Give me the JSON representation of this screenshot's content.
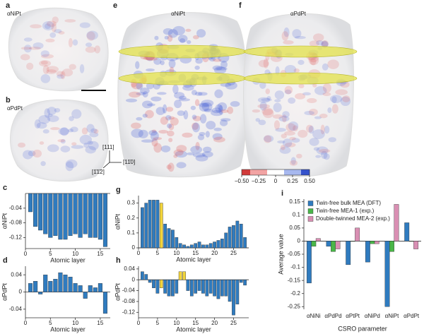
{
  "image_panels": [
    {
      "letter": "a",
      "label": "αNiPt"
    },
    {
      "letter": "b",
      "label": "αPdPt"
    },
    {
      "letter": "e",
      "label": "αNiPt"
    },
    {
      "letter": "f",
      "label": "αPdPt"
    }
  ],
  "direction_labels": [
    "[111]",
    "[11̄0]",
    "[1̄1̄2]"
  ],
  "colorbar": {
    "ticks": [
      {
        "value": -0.5,
        "label": "−0.50"
      },
      {
        "value": -0.25,
        "label": "−0.25"
      },
      0,
      {
        "value": 0.25,
        "label": "0.25"
      },
      {
        "value": 0.5,
        "label": "0.50"
      }
    ]
  },
  "chart_data": [
    {
      "type": "bar",
      "letter": "c",
      "x_label": "Atomic layer",
      "y_label": "αNiPt",
      "x": [
        1,
        2,
        3,
        4,
        5,
        6,
        7,
        8,
        9,
        10,
        11,
        12,
        13,
        14,
        15,
        16
      ],
      "values": [
        -0.05,
        -0.09,
        -0.1,
        -0.11,
        -0.12,
        -0.115,
        -0.125,
        -0.125,
        -0.115,
        -0.11,
        -0.12,
        -0.11,
        -0.12,
        -0.12,
        -0.125,
        -0.145
      ],
      "color": "#2f7bbf",
      "xlim": [
        0,
        17
      ],
      "ylim": [
        -0.15,
        0
      ],
      "xticks": [
        0,
        5,
        10,
        15
      ],
      "yticks": [
        -0.04,
        -0.08,
        -0.12
      ]
    },
    {
      "type": "bar",
      "letter": "d",
      "x_label": "Atomic layer",
      "y_label": "αPdPt",
      "x": [
        1,
        2,
        3,
        4,
        5,
        6,
        7,
        8,
        9,
        10,
        11,
        12,
        13,
        14,
        15,
        16
      ],
      "values": [
        0.02,
        0.025,
        -0.005,
        0.04,
        0.025,
        0.03,
        0.045,
        0.04,
        0.035,
        0.02,
        0.015,
        -0.015,
        0.015,
        0.01,
        0.02,
        -0.05
      ],
      "color": "#2f7bbf",
      "xlim": [
        0,
        17
      ],
      "ylim": [
        -0.06,
        0.06
      ],
      "xticks": [
        0,
        5,
        10,
        15
      ],
      "yticks": [
        -0.04,
        0,
        0.04
      ]
    },
    {
      "type": "bar",
      "letter": "g",
      "x_label": "Atomic layer",
      "y_label": "αNiPt",
      "x": [
        1,
        2,
        3,
        4,
        5,
        6,
        7,
        8,
        9,
        10,
        11,
        12,
        13,
        14,
        15,
        16,
        17,
        18,
        19,
        20,
        21,
        22,
        23,
        24,
        25,
        26,
        27,
        28
      ],
      "values": [
        0.27,
        0.3,
        0.32,
        0.32,
        0.32,
        0.3,
        0.16,
        0.13,
        0.12,
        0.07,
        0.03,
        0.02,
        0.01,
        0.02,
        0.03,
        0.04,
        0.02,
        0.02,
        0.03,
        0.04,
        0.05,
        0.06,
        0.1,
        0.14,
        0.15,
        0.18,
        0.16,
        0.07
      ],
      "color": "#2f7bbf",
      "highlight_color": "#f2d43a",
      "highlight": [
        6
      ],
      "xlim": [
        0,
        29
      ],
      "ylim": [
        0,
        0.35
      ],
      "xticks": [
        0,
        5,
        10,
        15,
        20,
        25
      ],
      "yticks": [
        0,
        0.1,
        0.2,
        0.3
      ]
    },
    {
      "type": "bar",
      "letter": "h",
      "x_label": "Atomic layer",
      "y_label": "αPdPt",
      "x": [
        1,
        2,
        3,
        4,
        5,
        6,
        7,
        8,
        9,
        10,
        11,
        12,
        13,
        14,
        15,
        16,
        17,
        18,
        19,
        20,
        21,
        22,
        23,
        24,
        25,
        26,
        27,
        28
      ],
      "values": [
        0.03,
        0.02,
        -0.01,
        -0.03,
        -0.05,
        -0.03,
        -0.05,
        -0.06,
        -0.06,
        -0.05,
        0.03,
        0.03,
        -0.04,
        -0.06,
        -0.05,
        -0.04,
        -0.05,
        -0.06,
        -0.05,
        -0.06,
        -0.07,
        -0.06,
        -0.06,
        -0.08,
        -0.13,
        -0.09,
        -0.01,
        -0.02
      ],
      "color": "#2f7bbf",
      "highlight_color": "#f2d43a",
      "highlight": [
        6,
        11,
        12
      ],
      "xlim": [
        0,
        29
      ],
      "ylim": [
        -0.14,
        0.05
      ],
      "xticks": [
        0,
        5,
        10,
        15,
        20,
        25
      ],
      "yticks": [
        -0.12,
        -0.08,
        -0.04,
        0,
        0.04
      ]
    },
    {
      "type": "grouped_bar",
      "letter": "i",
      "x_label": "CSRO parameter",
      "y_label": "Average value",
      "categories": [
        "αNiNi",
        "αPdPd",
        "αPtPt",
        "αNiPd",
        "αNiPt",
        "αPdPt"
      ],
      "series": [
        {
          "name": "Twin-free bulk MEA (DFT)",
          "color": "#2f7bbf",
          "values": [
            -0.16,
            -0.02,
            -0.09,
            -0.08,
            -0.25,
            0.07
          ]
        },
        {
          "name": "Twin-free MEA-1 (exp.)",
          "color": "#49b648",
          "values": [
            -0.02,
            -0.04,
            0.0,
            -0.01,
            -0.04,
            0.0
          ]
        },
        {
          "name": "Double-twinned MEA-2 (exp.)",
          "color": "#d98fb3",
          "values": [
            0.01,
            -0.03,
            0.05,
            -0.01,
            0.14,
            -0.03
          ]
        }
      ],
      "legend": "upper left",
      "ylim": [
        -0.26,
        0.16
      ],
      "yticks": [
        -0.25,
        -0.2,
        -0.15,
        -0.1,
        -0.05,
        0,
        0.05,
        0.1,
        0.15
      ]
    }
  ]
}
